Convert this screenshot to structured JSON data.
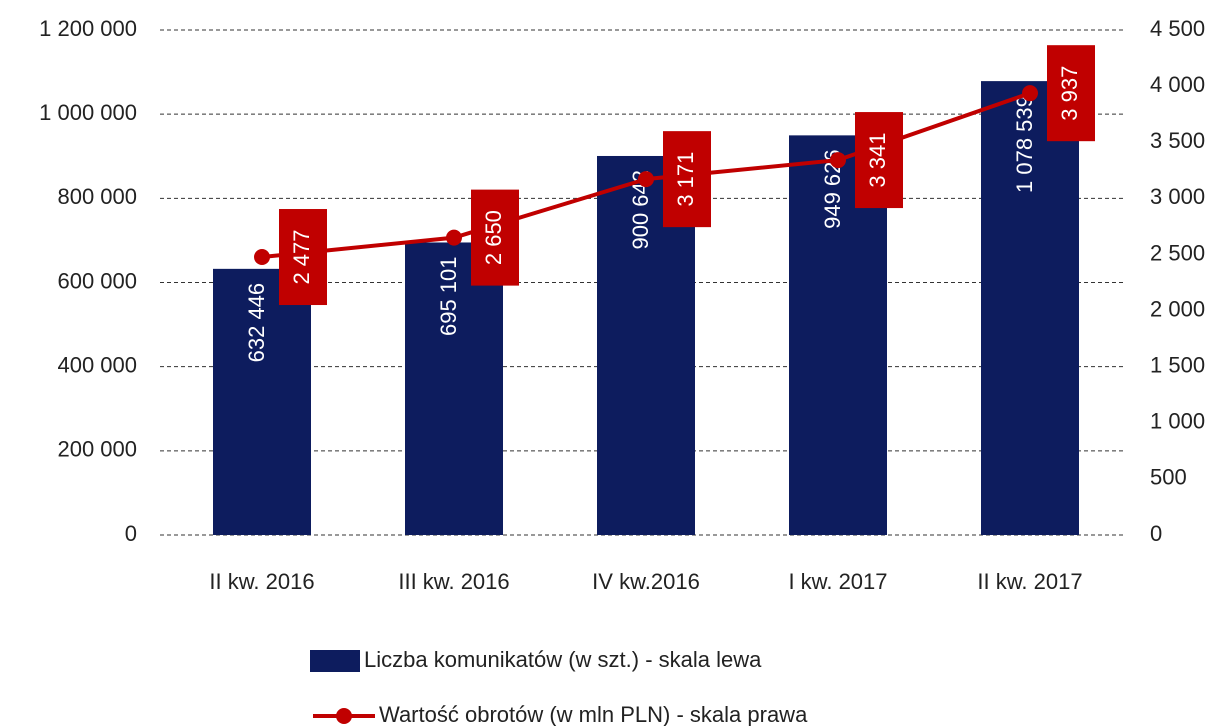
{
  "chart_data": {
    "type": "bar",
    "categories": [
      "II kw. 2016",
      "III kw. 2016",
      "IV kw.2016",
      "I kw. 2017",
      "II kw. 2017"
    ],
    "series": [
      {
        "name": "Liczba komunikatów (w szt.) - skala lewa",
        "type": "bar",
        "color": "#0d1c5e",
        "values": [
          632446,
          695101,
          900642,
          949626,
          1078539
        ],
        "value_labels": [
          "632 446",
          "695 101",
          "900 642",
          "949 626",
          "1 078 539"
        ]
      },
      {
        "name": "Wartość obrotów (w mln PLN) - skala prawa",
        "type": "line",
        "axis": "y2",
        "color": "#c00000",
        "values": [
          2477,
          2650,
          3171,
          3341,
          3937
        ],
        "value_labels": [
          "2 477",
          "2 650",
          "3 171",
          "3 341",
          "3 937"
        ]
      }
    ],
    "ylim": [
      0,
      1200000
    ],
    "yticks": [
      0,
      {
        "value": 200000,
        "label": "200 000"
      },
      {
        "value": 400000,
        "label": "400 000"
      },
      {
        "value": 600000,
        "label": "600 000"
      },
      {
        "value": 800000,
        "label": "800 000"
      },
      {
        "value": 1000000,
        "label": "1 000 000"
      },
      {
        "value": 1200000,
        "label": "1 200 000"
      }
    ],
    "y2lim": [
      0,
      4500
    ],
    "y2ticks": [
      0,
      500,
      {
        "value": 1000,
        "label": "1 000"
      },
      {
        "value": 1500,
        "label": "1 500"
      },
      {
        "value": 2000,
        "label": "2 000"
      },
      {
        "value": 2500,
        "label": "2 500"
      },
      {
        "value": 3000,
        "label": "3 000"
      },
      {
        "value": 3500,
        "label": "3 500"
      },
      {
        "value": 4000,
        "label": "4 000"
      },
      {
        "value": 4500,
        "label": "4 500"
      }
    ],
    "grid": true
  }
}
